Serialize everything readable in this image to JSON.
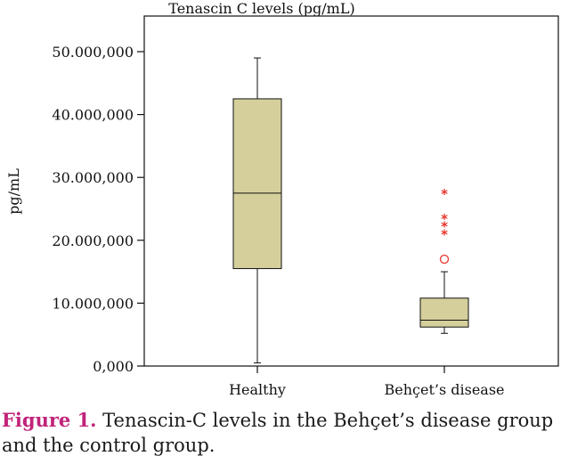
{
  "chart_data": {
    "type": "box",
    "title": "Tenascin C levels (pg/mL)",
    "xlabel": "",
    "ylabel": "pg/mL",
    "ylim": [
      0,
      50000000
    ],
    "yticks": [
      0,
      10000000,
      20000000,
      30000000,
      40000000,
      50000000
    ],
    "ytick_labels": [
      "0,000",
      "10.000,000",
      "20.000,000",
      "30.000,000",
      "40.000,000",
      "50.000,000"
    ],
    "categories": [
      "Healthy",
      "Behçet’s disease"
    ],
    "boxes": [
      {
        "category": "Healthy",
        "min": 500000,
        "q1": 15500000,
        "median": 27500000,
        "q3": 42500000,
        "max": 49000000,
        "outliers": [],
        "extremes": []
      },
      {
        "category": "Behçet’s disease",
        "min": 5200000,
        "q1": 6200000,
        "median": 7300000,
        "q3": 10800000,
        "max": 15000000,
        "outliers": [
          17000000
        ],
        "extremes": [
          21000000,
          22300000,
          23500000,
          27500000
        ]
      }
    ],
    "outlier_marker": "○",
    "extreme_marker": "*",
    "box_color": "#d5d09b",
    "outlier_color": "#e8342c"
  },
  "caption": {
    "label": "Figure 1.",
    "text": " Tenascin-C levels in the Behçet’s disease group and the control group."
  }
}
